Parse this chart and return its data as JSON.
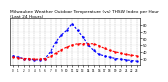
{
  "title": "Milwaukee Weather Outdoor Temperature (vs) THSW Index per Hour (Last 24 Hours)",
  "hours": [
    0,
    1,
    2,
    3,
    4,
    5,
    6,
    7,
    8,
    9,
    10,
    11,
    12,
    13,
    14,
    15,
    16,
    17,
    18,
    19,
    20,
    21,
    22,
    23
  ],
  "temp": [
    32,
    31,
    30,
    30,
    29,
    29,
    30,
    33,
    38,
    43,
    47,
    50,
    52,
    52,
    52,
    52,
    49,
    45,
    42,
    40,
    38,
    36,
    35,
    34
  ],
  "thsw": [
    34,
    32,
    30,
    29,
    28,
    28,
    30,
    40,
    55,
    65,
    72,
    82,
    72,
    62,
    50,
    42,
    36,
    34,
    32,
    30,
    29,
    28,
    27,
    26
  ],
  "temp_color": "#ff0000",
  "thsw_color": "#0000ff",
  "background": "#ffffff",
  "grid_color": "#999999",
  "ylim_min": 20,
  "ylim_max": 90,
  "ytick_values": [
    80,
    70,
    60,
    50,
    40,
    30
  ],
  "title_fontsize": 3.2,
  "line_width": 0.8,
  "marker_size": 1.5
}
